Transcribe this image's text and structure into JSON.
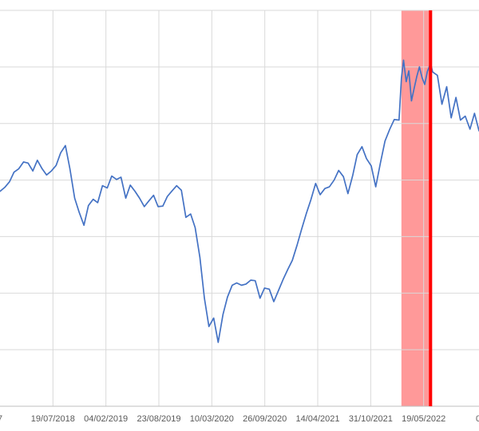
{
  "chart_data": {
    "type": "line",
    "title": "",
    "xlabel": "",
    "ylabel": "",
    "grid": true,
    "legend": "none",
    "x_axis_type": "date",
    "xlim": [
      "2017-12-31",
      "2022-12-14"
    ],
    "ylim": [
      0,
      7
    ],
    "x_tick_labels": [
      "19/07/2018",
      "04/02/2019",
      "23/08/2019",
      "10/03/2020",
      "26/09/2020",
      "14/04/2021",
      "31/10/2021",
      "19/05/2022"
    ],
    "x_tick_dates": [
      "2018-07-19",
      "2019-02-04",
      "2019-08-23",
      "2020-03-10",
      "2020-09-26",
      "2021-04-14",
      "2021-10-31",
      "2022-05-19"
    ],
    "edge_label_left": "7",
    "edge_label_right": "0",
    "highlight_band": {
      "start": "2022-02-24",
      "end": "2022-06-14",
      "color": "#ff9999"
    },
    "marker_line": {
      "date": "2022-06-14",
      "color": "#ff0000"
    },
    "series": [
      {
        "color": "#4472c4",
        "points": [
          [
            "2017-12-31",
            3.8
          ],
          [
            "2018-01-18",
            3.87
          ],
          [
            "2018-02-05",
            3.97
          ],
          [
            "2018-02-22",
            4.14
          ],
          [
            "2018-03-12",
            4.2
          ],
          [
            "2018-03-30",
            4.32
          ],
          [
            "2018-04-16",
            4.3
          ],
          [
            "2018-05-04",
            4.16
          ],
          [
            "2018-05-21",
            4.35
          ],
          [
            "2018-06-08",
            4.2
          ],
          [
            "2018-06-25",
            4.09
          ],
          [
            "2018-07-13",
            4.16
          ],
          [
            "2018-07-31",
            4.26
          ],
          [
            "2018-08-17",
            4.48
          ],
          [
            "2018-09-04",
            4.61
          ],
          [
            "2018-09-21",
            4.2
          ],
          [
            "2018-10-09",
            3.68
          ],
          [
            "2018-10-26",
            3.43
          ],
          [
            "2018-11-13",
            3.2
          ],
          [
            "2018-11-30",
            3.55
          ],
          [
            "2018-12-18",
            3.66
          ],
          [
            "2019-01-04",
            3.6
          ],
          [
            "2019-01-22",
            3.9
          ],
          [
            "2019-02-09",
            3.86
          ],
          [
            "2019-02-26",
            4.07
          ],
          [
            "2019-03-16",
            4.01
          ],
          [
            "2019-04-02",
            4.05
          ],
          [
            "2019-04-20",
            3.68
          ],
          [
            "2019-05-07",
            3.91
          ],
          [
            "2019-05-25",
            3.8
          ],
          [
            "2019-06-11",
            3.68
          ],
          [
            "2019-06-29",
            3.53
          ],
          [
            "2019-07-16",
            3.63
          ],
          [
            "2019-08-03",
            3.73
          ],
          [
            "2019-08-20",
            3.53
          ],
          [
            "2019-09-07",
            3.54
          ],
          [
            "2019-09-24",
            3.71
          ],
          [
            "2019-10-12",
            3.81
          ],
          [
            "2019-10-29",
            3.9
          ],
          [
            "2019-11-16",
            3.82
          ],
          [
            "2019-12-03",
            3.34
          ],
          [
            "2019-12-21",
            3.4
          ],
          [
            "2020-01-07",
            3.16
          ],
          [
            "2020-01-25",
            2.63
          ],
          [
            "2020-02-11",
            1.91
          ],
          [
            "2020-02-28",
            1.41
          ],
          [
            "2020-03-17",
            1.56
          ],
          [
            "2020-04-03",
            1.13
          ],
          [
            "2020-04-21",
            1.62
          ],
          [
            "2020-05-08",
            1.93
          ],
          [
            "2020-05-26",
            2.14
          ],
          [
            "2020-06-12",
            2.18
          ],
          [
            "2020-06-30",
            2.14
          ],
          [
            "2020-07-17",
            2.16
          ],
          [
            "2020-08-04",
            2.23
          ],
          [
            "2020-08-21",
            2.22
          ],
          [
            "2020-09-08",
            1.91
          ],
          [
            "2020-09-25",
            2.09
          ],
          [
            "2020-10-13",
            2.07
          ],
          [
            "2020-10-30",
            1.85
          ],
          [
            "2020-11-17",
            2.05
          ],
          [
            "2020-12-04",
            2.24
          ],
          [
            "2020-12-22",
            2.42
          ],
          [
            "2021-01-08",
            2.58
          ],
          [
            "2021-01-26",
            2.85
          ],
          [
            "2021-02-12",
            3.13
          ],
          [
            "2021-03-02",
            3.41
          ],
          [
            "2021-03-19",
            3.65
          ],
          [
            "2021-04-06",
            3.94
          ],
          [
            "2021-04-23",
            3.74
          ],
          [
            "2021-05-11",
            3.85
          ],
          [
            "2021-05-28",
            3.88
          ],
          [
            "2021-06-15",
            4.0
          ],
          [
            "2021-07-02",
            4.17
          ],
          [
            "2021-07-20",
            4.06
          ],
          [
            "2021-08-06",
            3.76
          ],
          [
            "2021-08-24",
            4.08
          ],
          [
            "2021-09-10",
            4.45
          ],
          [
            "2021-09-28",
            4.59
          ],
          [
            "2021-10-15",
            4.38
          ],
          [
            "2021-11-02",
            4.25
          ],
          [
            "2021-11-19",
            3.88
          ],
          [
            "2021-12-07",
            4.31
          ],
          [
            "2021-12-24",
            4.69
          ],
          [
            "2022-01-11",
            4.9
          ],
          [
            "2022-01-28",
            5.07
          ],
          [
            "2022-02-15",
            5.06
          ],
          [
            "2022-02-24",
            5.8
          ],
          [
            "2022-03-04",
            6.12
          ],
          [
            "2022-03-14",
            5.74
          ],
          [
            "2022-03-24",
            5.93
          ],
          [
            "2022-04-03",
            5.4
          ],
          [
            "2022-04-13",
            5.62
          ],
          [
            "2022-04-23",
            5.83
          ],
          [
            "2022-05-03",
            6.0
          ],
          [
            "2022-05-13",
            5.81
          ],
          [
            "2022-05-23",
            5.69
          ],
          [
            "2022-06-02",
            5.92
          ],
          [
            "2022-06-14",
            6.06
          ],
          [
            "2022-06-22",
            5.91
          ],
          [
            "2022-07-10",
            5.85
          ],
          [
            "2022-07-27",
            5.34
          ],
          [
            "2022-08-14",
            5.65
          ],
          [
            "2022-08-31",
            5.1
          ],
          [
            "2022-09-18",
            5.46
          ],
          [
            "2022-10-05",
            5.06
          ],
          [
            "2022-10-23",
            5.13
          ],
          [
            "2022-11-10",
            4.9
          ],
          [
            "2022-11-27",
            5.18
          ],
          [
            "2022-12-14",
            4.87
          ]
        ]
      }
    ]
  }
}
